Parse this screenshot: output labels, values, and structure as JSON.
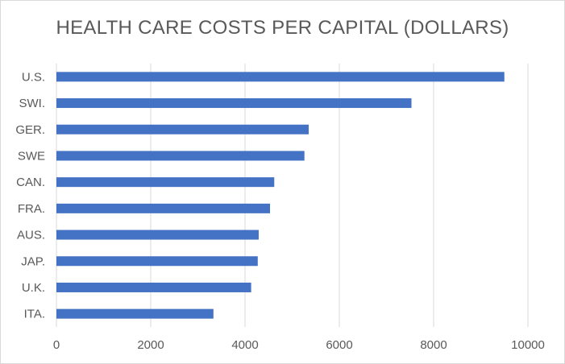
{
  "chart_data": {
    "type": "bar",
    "orientation": "horizontal",
    "title": "HEALTH CARE COSTS PER CAPITAL (DOLLARS)",
    "xlabel": "",
    "ylabel": "",
    "categories": [
      "U.S.",
      "SWI.",
      "GER.",
      "SWE",
      "CAN.",
      "FRA.",
      "AUS.",
      "JAP.",
      "U.K.",
      "ITA."
    ],
    "series": [
      {
        "values": [
          9500,
          7530,
          5350,
          5260,
          4620,
          4530,
          4290,
          4270,
          4130,
          3330
        ],
        "color": "#4472c4"
      }
    ],
    "x_ticks": [
      "0",
      "2000",
      "4000",
      "6000",
      "8000",
      "10000"
    ],
    "xlim": [
      0,
      10000
    ],
    "grid": "vertical",
    "legend": "none"
  }
}
